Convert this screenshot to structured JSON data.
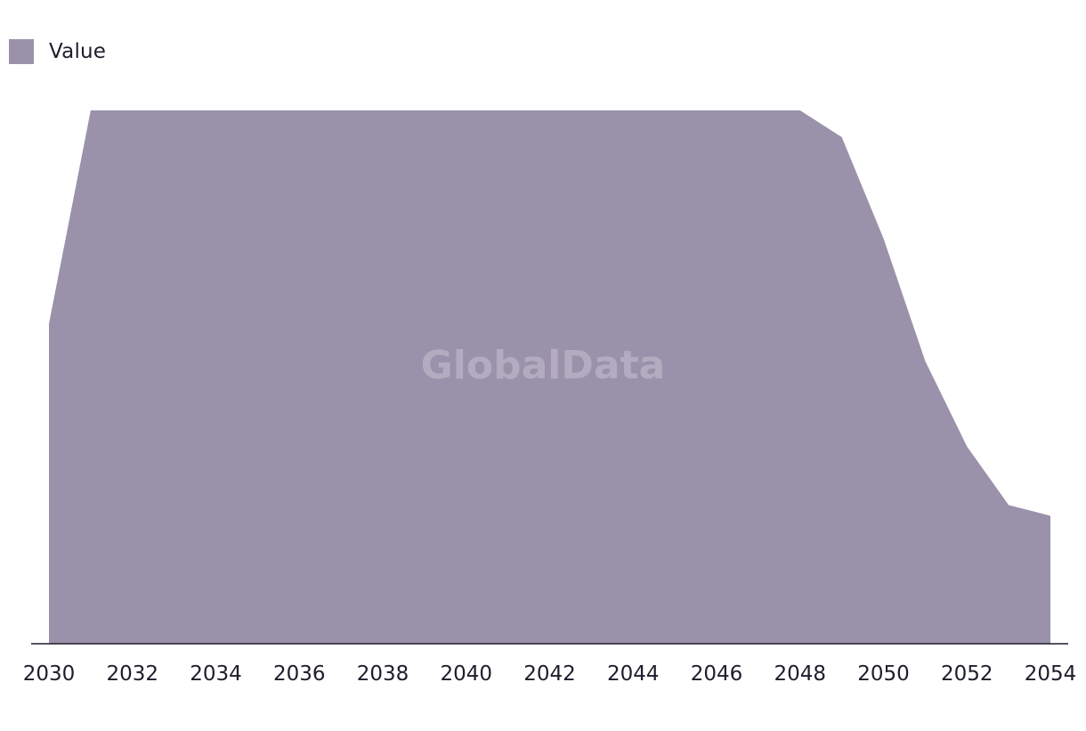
{
  "watermark": "GlobalData",
  "colors": {
    "area": "#9a91aa",
    "axis": "#1f1d2b",
    "text": "#1f1d2b",
    "watermark": "#b3acc0"
  },
  "chart_data": {
    "type": "area",
    "title": "",
    "xlabel": "",
    "ylabel": "",
    "legend": {
      "position": "top-left",
      "entries": [
        "Value"
      ]
    },
    "grid": false,
    "xlim": [
      2030,
      2054
    ],
    "ylim": [
      0,
      100
    ],
    "x_ticks": [
      "2030",
      "2032",
      "2034",
      "2036",
      "2038",
      "2040",
      "2042",
      "2044",
      "2046",
      "2048",
      "2050",
      "2052",
      "2054"
    ],
    "x": [
      2030,
      2031,
      2032,
      2033,
      2034,
      2035,
      2036,
      2037,
      2038,
      2039,
      2040,
      2041,
      2042,
      2043,
      2044,
      2045,
      2046,
      2047,
      2048,
      2049,
      2050,
      2051,
      2052,
      2053,
      2054
    ],
    "series": [
      {
        "name": "Value",
        "values": [
          60,
          100,
          100,
          100,
          100,
          100,
          100,
          100,
          100,
          100,
          100,
          100,
          100,
          100,
          100,
          100,
          100,
          100,
          100,
          95,
          76,
          53,
          37,
          26,
          24
        ]
      }
    ]
  }
}
